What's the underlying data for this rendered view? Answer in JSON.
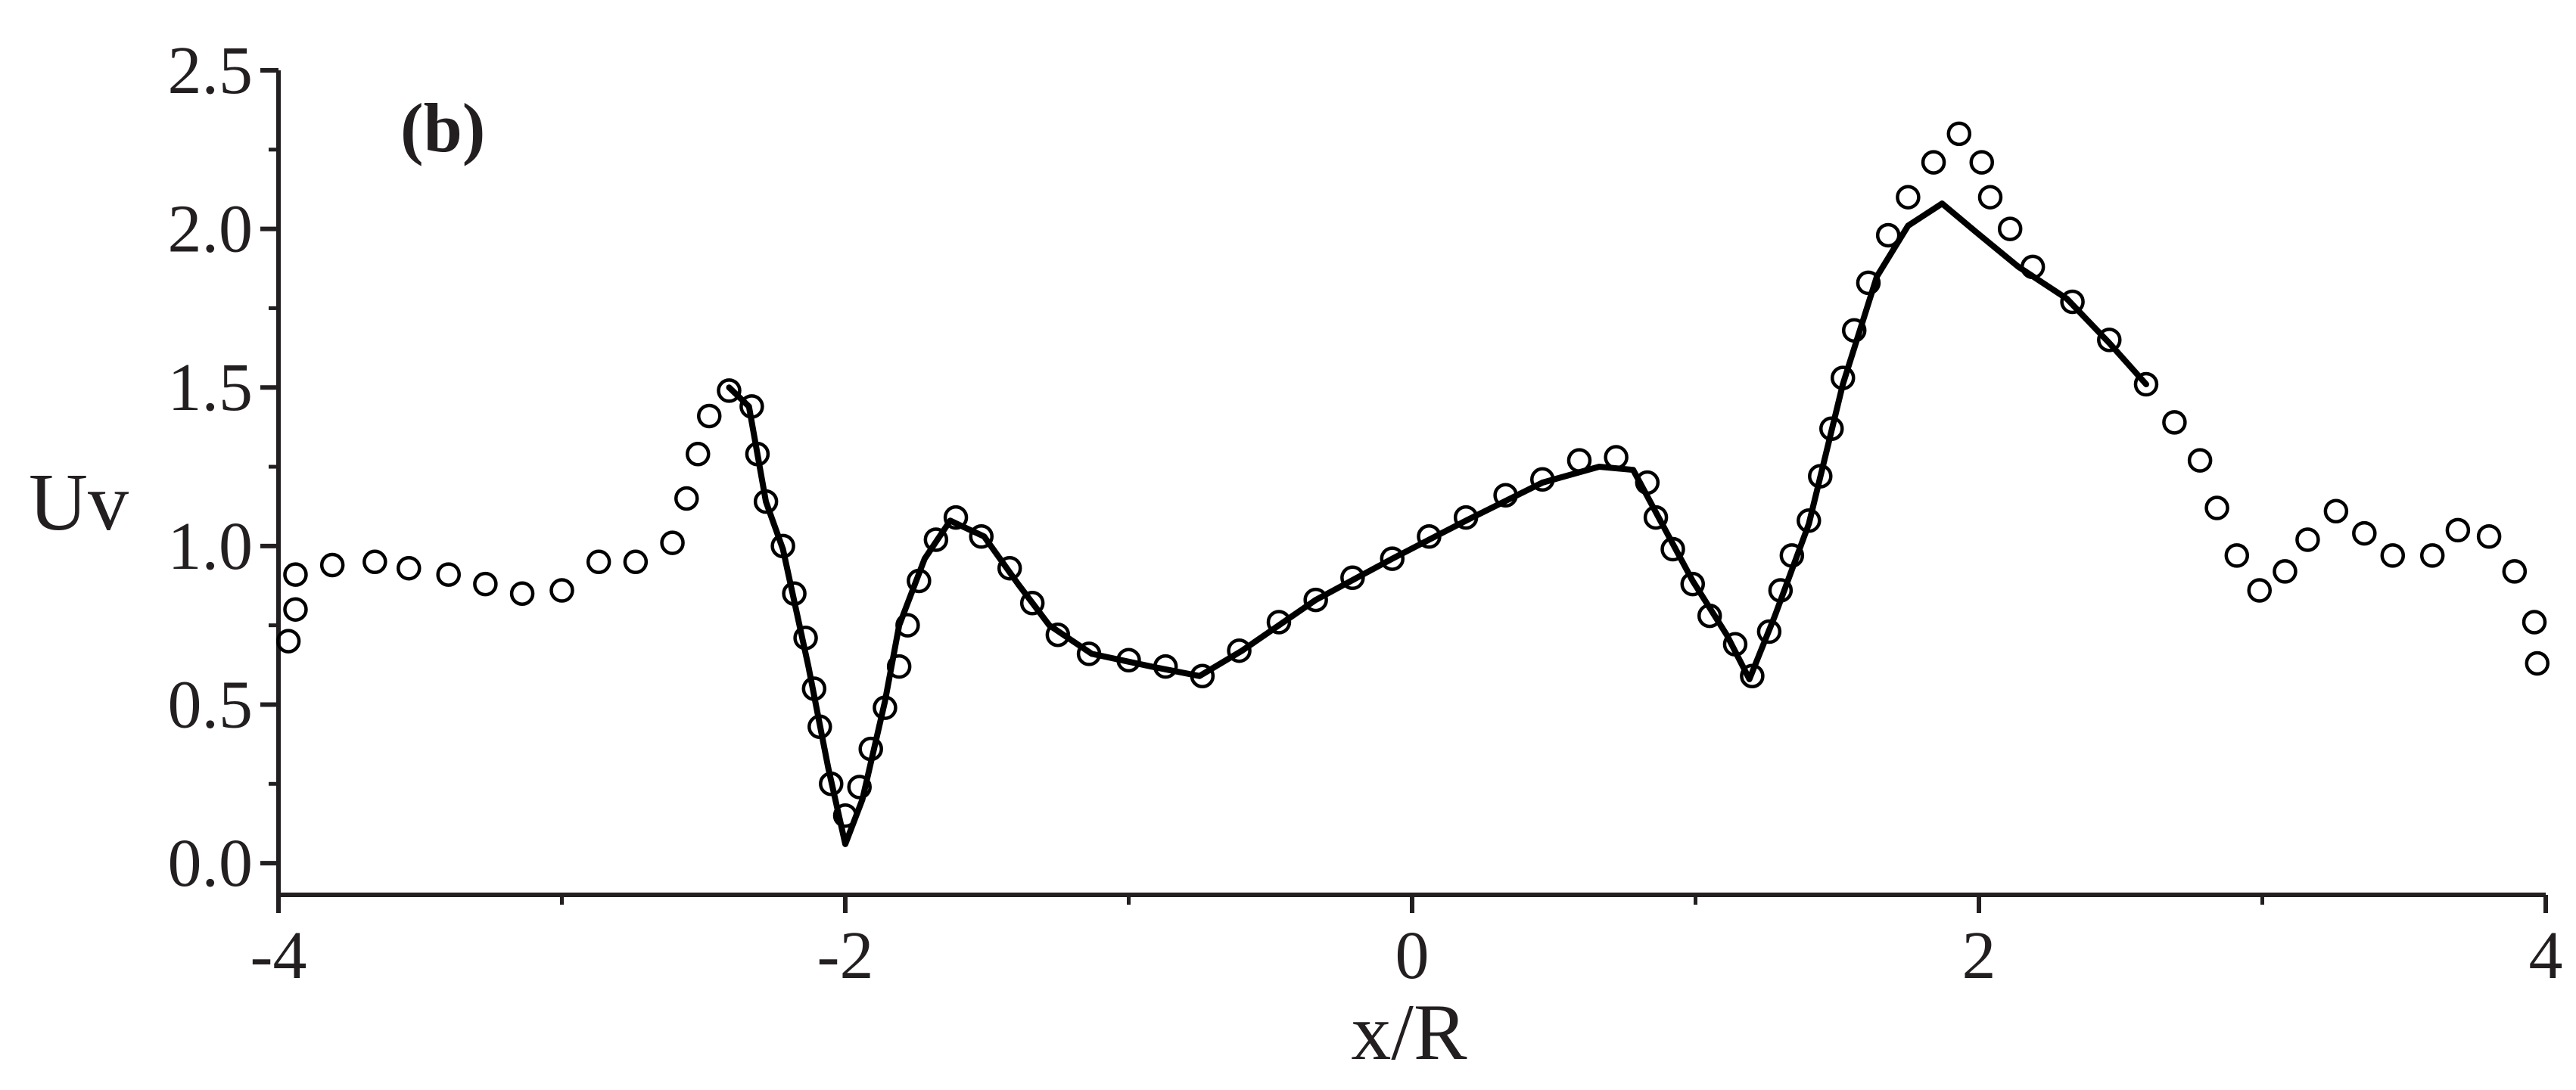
{
  "chart_data": {
    "type": "line",
    "annotation": "(b)",
    "xlabel": "x/R",
    "ylabel": "Uv",
    "xlim": [
      -4,
      4
    ],
    "ylim": [
      -0.1,
      2.5
    ],
    "xticks": [
      -4,
      -2,
      0,
      2,
      4
    ],
    "xminorticks": [
      -3,
      -1,
      1,
      3
    ],
    "yticks": [
      {
        "value": 0,
        "label": "0.0"
      },
      0.5,
      {
        "value": 1,
        "label": "1.0"
      },
      1.5,
      {
        "value": 2,
        "label": "2.0"
      },
      2.5
    ],
    "yminorticks": [
      0.25,
      0.75,
      1.25,
      1.75,
      2.25
    ],
    "grid": false,
    "series": [
      {
        "type": "scatter",
        "color": "#000000",
        "x": [
          -3.965,
          -3.94,
          -3.94,
          -3.81,
          -3.66,
          -3.54,
          -3.4,
          -3.27,
          -3.14,
          -3.0,
          -2.87,
          -2.74,
          -2.61,
          -2.56,
          -2.52,
          -2.48,
          -2.41,
          -2.33,
          -2.31,
          -2.28,
          -2.22,
          -2.18,
          -2.14,
          -2.11,
          -2.09,
          -2.05,
          -2.0,
          -1.95,
          -1.91,
          -1.86,
          -1.81,
          -1.78,
          -1.74,
          -1.68,
          -1.61,
          -1.52,
          -1.42,
          -1.34,
          -1.25,
          -1.14,
          -1.0,
          -0.87,
          -0.74,
          -0.61,
          -0.47,
          -0.34,
          -0.21,
          -0.07,
          0.06,
          0.19,
          0.33,
          0.46,
          0.59,
          0.72,
          0.83,
          0.86,
          0.92,
          0.99,
          1.05,
          1.14,
          1.2,
          1.26,
          1.3,
          1.34,
          1.4,
          1.44,
          1.48,
          1.52,
          1.56,
          1.61,
          1.68,
          1.75,
          1.84,
          1.93,
          2.01,
          2.04,
          2.11,
          2.19,
          2.33,
          2.46,
          2.59,
          2.69,
          2.78,
          2.84,
          2.91,
          2.99,
          3.08,
          3.16,
          3.26,
          3.36,
          3.46,
          3.6,
          3.69,
          3.8,
          3.89,
          3.96,
          3.97
        ],
        "values": [
          0.7,
          0.8,
          0.91,
          0.94,
          0.95,
          0.93,
          0.91,
          0.88,
          0.85,
          0.86,
          0.95,
          0.95,
          1.01,
          1.15,
          1.29,
          1.41,
          1.49,
          1.44,
          1.29,
          1.14,
          1.0,
          0.85,
          0.71,
          0.55,
          0.43,
          0.25,
          0.15,
          0.24,
          0.36,
          0.49,
          0.62,
          0.75,
          0.89,
          1.02,
          1.09,
          1.03,
          0.93,
          0.82,
          0.72,
          0.66,
          0.64,
          0.62,
          0.59,
          0.67,
          0.76,
          0.83,
          0.9,
          0.96,
          1.03,
          1.09,
          1.16,
          1.21,
          1.27,
          1.28,
          1.2,
          1.09,
          0.99,
          0.88,
          0.78,
          0.69,
          0.59,
          0.73,
          0.86,
          0.97,
          1.08,
          1.22,
          1.37,
          1.53,
          1.68,
          1.83,
          1.98,
          2.1,
          2.21,
          2.3,
          2.21,
          2.1,
          2.0,
          1.88,
          1.77,
          1.65,
          1.51,
          1.39,
          1.27,
          1.12,
          0.97,
          0.86,
          0.92,
          1.02,
          1.11,
          1.04,
          0.97,
          0.97,
          1.05,
          1.03,
          0.92,
          0.76,
          0.63
        ]
      },
      {
        "type": "line",
        "color": "#000000",
        "x": [
          -2.41,
          -2.34,
          -2.28,
          -2.22,
          -2.13,
          -2.06,
          -2.0,
          -1.94,
          -1.86,
          -1.81,
          -1.72,
          -1.63,
          -1.51,
          -1.39,
          -1.28,
          -1.13,
          -0.92,
          -0.75,
          -0.6,
          -0.34,
          -0.07,
          0.19,
          0.46,
          0.66,
          0.78,
          0.87,
          0.99,
          1.11,
          1.19,
          1.28,
          1.4,
          1.52,
          1.64,
          1.75,
          1.87,
          1.99,
          2.14,
          2.31,
          2.46,
          2.59
        ],
        "values": [
          1.5,
          1.44,
          1.14,
          0.99,
          0.62,
          0.3,
          0.06,
          0.2,
          0.51,
          0.75,
          0.96,
          1.08,
          1.03,
          0.88,
          0.75,
          0.66,
          0.62,
          0.59,
          0.67,
          0.83,
          0.96,
          1.08,
          1.2,
          1.25,
          1.24,
          1.09,
          0.89,
          0.72,
          0.58,
          0.78,
          1.07,
          1.51,
          1.85,
          2.01,
          2.08,
          1.99,
          1.88,
          1.78,
          1.64,
          1.51
        ]
      }
    ]
  }
}
